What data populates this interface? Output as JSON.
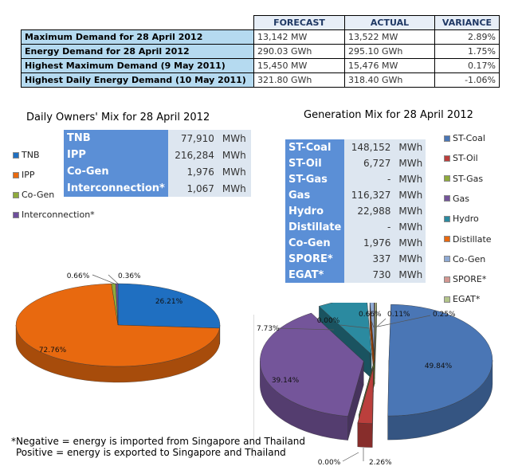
{
  "summary": {
    "headers": [
      "FORECAST",
      "ACTUAL",
      "VARIANCE"
    ],
    "rows": [
      {
        "label": "Maximum Demand for 28 April 2012",
        "forecast": "13,142  MW",
        "actual": "13,522  MW",
        "variance": "2.89%"
      },
      {
        "label": "Energy Demand for 28 April 2012",
        "forecast": "290.03  GWh",
        "actual": "295.10  GWh",
        "variance": "1.75%"
      },
      {
        "label": "Highest Maximum Demand (9 May 2011)",
        "forecast": "15,450  MW",
        "actual": "15,476  MW",
        "variance": "0.17%"
      },
      {
        "label": "Highest Daily Energy Demand (10 May 2011)",
        "forecast": "321.80  GWh",
        "actual": "318.40  GWh",
        "variance": "-1.06%"
      }
    ]
  },
  "owners": {
    "title": "Daily Owners' Mix for 28 April 2012",
    "rows": [
      {
        "name": "TNB",
        "value": "77,910",
        "unit": "MWh"
      },
      {
        "name": "IPP",
        "value": "216,284",
        "unit": "MWh"
      },
      {
        "name": "Co-Gen",
        "value": "1,976",
        "unit": "MWh"
      },
      {
        "name": "Interconnection*",
        "value": "1,067",
        "unit": "MWh"
      }
    ],
    "legend": [
      "TNB",
      "IPP",
      "Co-Gen",
      "Interconnection*"
    ]
  },
  "generation": {
    "title": "Generation Mix for 28 April 2012",
    "rows": [
      {
        "name": "ST-Coal",
        "value": "148,152",
        "unit": "MWh"
      },
      {
        "name": "ST-Oil",
        "value": "6,727",
        "unit": "MWh"
      },
      {
        "name": "ST-Gas",
        "value": "-",
        "unit": "MWh"
      },
      {
        "name": "Gas",
        "value": "116,327",
        "unit": "MWh"
      },
      {
        "name": "Hydro",
        "value": "22,988",
        "unit": "MWh"
      },
      {
        "name": "Distillate",
        "value": "-",
        "unit": "MWh"
      },
      {
        "name": "Co-Gen",
        "value": "1,976",
        "unit": "MWh"
      },
      {
        "name": "SPORE*",
        "value": "337",
        "unit": "MWh"
      },
      {
        "name": "EGAT*",
        "value": "730",
        "unit": "MWh"
      }
    ],
    "legend": [
      "ST-Coal",
      "ST-Oil",
      "ST-Gas",
      "Gas",
      "Hydro",
      "Distillate",
      "Co-Gen",
      "SPORE*",
      "EGAT*"
    ]
  },
  "chart_data": [
    {
      "type": "pie",
      "title": "Daily Owners' Mix for 28 April 2012",
      "categories": [
        "TNB",
        "IPP",
        "Co-Gen",
        "Interconnection*"
      ],
      "values": [
        26.21,
        72.76,
        0.66,
        0.36
      ],
      "labels": [
        "26.21%",
        "72.76%",
        "0.66%",
        "0.36%"
      ],
      "colors": [
        "#1f6fc1",
        "#e8690f",
        "#8faa3c",
        "#6e4f9c"
      ]
    },
    {
      "type": "pie",
      "title": "Generation Mix for 28 April 2012",
      "categories": [
        "ST-Coal",
        "ST-Oil",
        "ST-Gas",
        "Gas",
        "Hydro",
        "Distillate",
        "Co-Gen",
        "SPORE*",
        "EGAT*"
      ],
      "values": [
        49.84,
        2.26,
        0.0,
        39.14,
        7.73,
        0.0,
        0.66,
        0.11,
        0.25
      ],
      "labels": [
        "49.84%",
        "2.26%",
        "0.00%",
        "39.14%",
        "7.73%",
        "0.00%",
        "0.66%",
        "0.11%",
        "0.25%"
      ],
      "colors": [
        "#4a76b5",
        "#bb3f3c",
        "#8faa3c",
        "#74559a",
        "#2b8aa0",
        "#e8690f",
        "#8fa9d3",
        "#d39791",
        "#b3c48a"
      ]
    }
  ],
  "footnote": {
    "line1": "*Negative = energy is imported from Singapore and Thailand",
    "line2": "Positive = energy is exported to Singapore and Thailand"
  }
}
